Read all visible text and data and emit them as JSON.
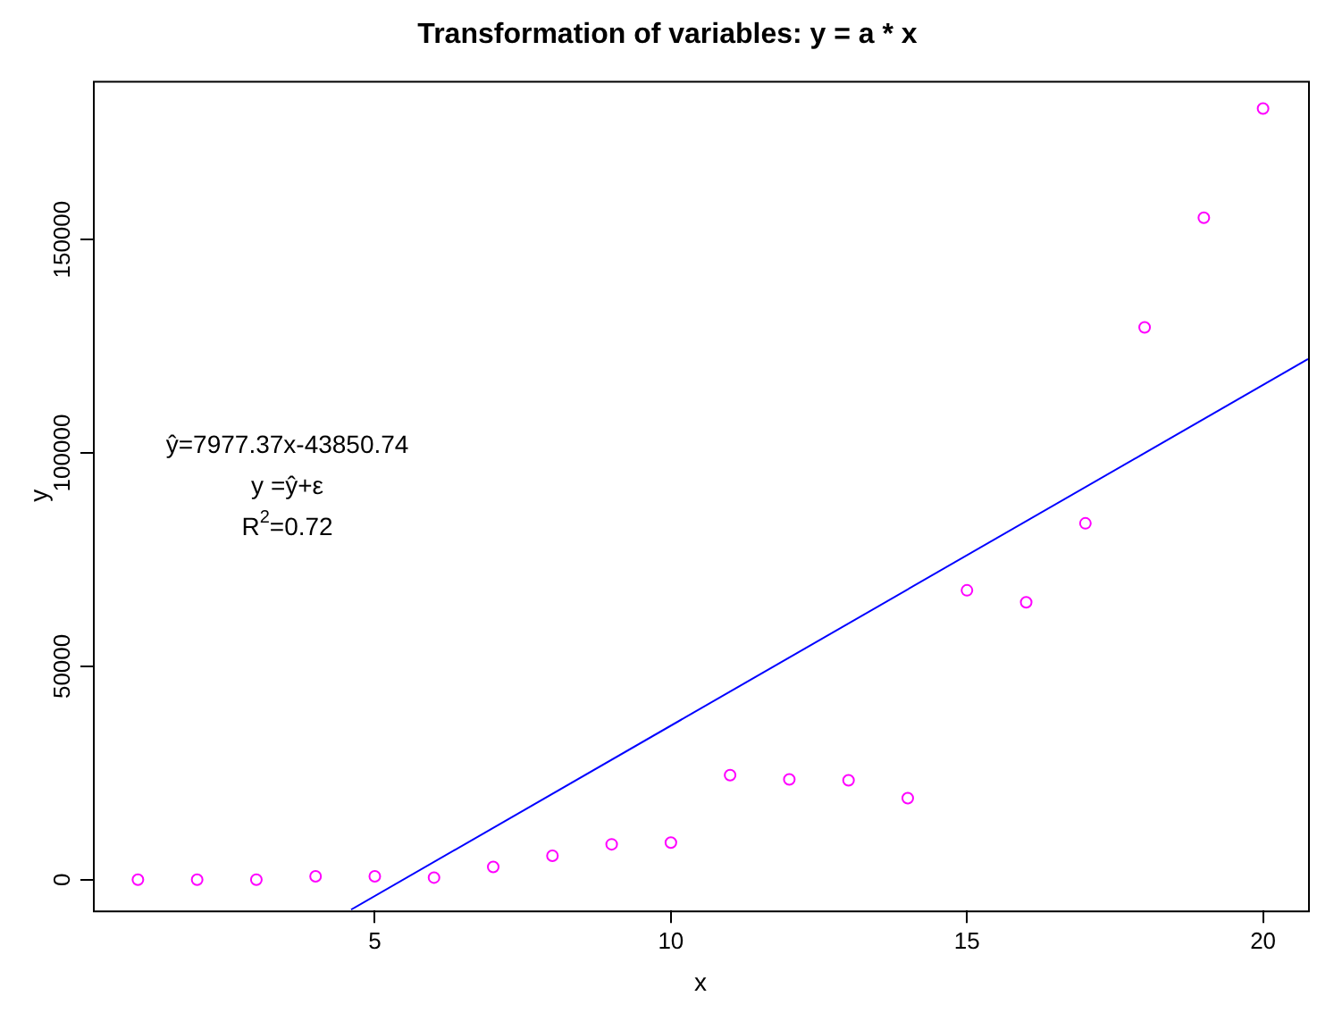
{
  "chart_data": {
    "type": "scatter",
    "title": "Transformation of variables: y = a * x",
    "xlabel": "x",
    "ylabel": "y",
    "xlim": [
      0.24,
      20.76
    ],
    "xticks": [
      5,
      10,
      15,
      20
    ],
    "ylim": [
      -7200,
      187200
    ],
    "yticks": [
      0,
      50000,
      100000,
      150000
    ],
    "grid": false,
    "legend": false,
    "marker": "circle",
    "annotations": [
      "ŷ=7977.37x-43850.74",
      "y =ŷ+ε",
      "R$^{2}$=0.72"
    ],
    "series": [
      {
        "type": "scatter",
        "color": "#ff00ff",
        "x": [
          1,
          2,
          3,
          4,
          5,
          6,
          7,
          8,
          9,
          10,
          11,
          12,
          13,
          14,
          15,
          16,
          17,
          18,
          19,
          20
        ],
        "values": [
          0,
          0,
          0,
          800,
          800,
          500,
          3000,
          5600,
          8300,
          8700,
          24500,
          23500,
          23300,
          19100,
          67800,
          65000,
          83500,
          129400,
          155100,
          180700
        ]
      },
      {
        "type": "line",
        "color": "#0000ff",
        "marker": "none",
        "line_style": "solid",
        "x": [
          4.6,
          20.76
        ],
        "values": [
          -7000,
          122000
        ]
      }
    ]
  }
}
